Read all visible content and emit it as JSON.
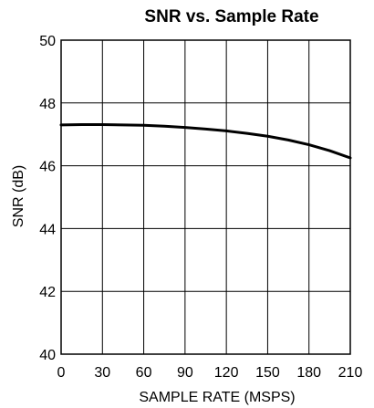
{
  "chart_data": {
    "type": "line",
    "title": "SNR vs. Sample Rate",
    "xlabel": "SAMPLE RATE (MSPS)",
    "ylabel": "SNR (dB)",
    "xlim": [
      0,
      210
    ],
    "ylim": [
      40,
      50
    ],
    "x_ticks": [
      0,
      30,
      60,
      90,
      120,
      150,
      180,
      210
    ],
    "y_ticks": [
      40,
      42,
      44,
      46,
      48,
      50
    ],
    "grid": true,
    "legend": "none",
    "line_color": "#000000",
    "series": [
      {
        "x": [
          0,
          15,
          30,
          45,
          60,
          75,
          90,
          105,
          120,
          135,
          150,
          165,
          180,
          195,
          210
        ],
        "y": [
          47.3,
          47.31,
          47.31,
          47.3,
          47.29,
          47.26,
          47.22,
          47.17,
          47.11,
          47.03,
          46.94,
          46.82,
          46.67,
          46.48,
          46.25
        ]
      }
    ]
  }
}
